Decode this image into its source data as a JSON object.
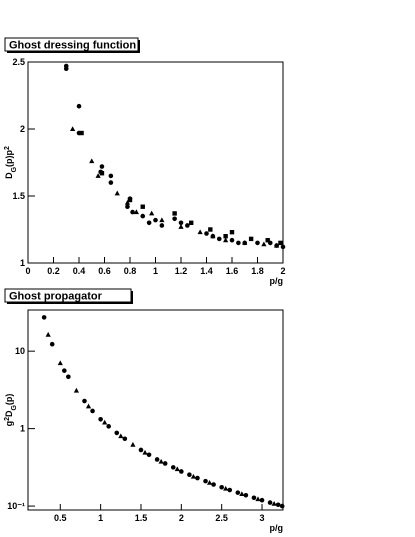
{
  "chart_data": [
    {
      "type": "scatter",
      "title": "Ghost dressing function",
      "xlabel": "p/g",
      "ylabel": [
        "D",
        "G",
        "(p)p",
        "2"
      ],
      "xlim": [
        0,
        2
      ],
      "ylim": [
        1,
        2.5
      ],
      "xticks": [
        0,
        0.2,
        0.4,
        0.6,
        0.8,
        1,
        1.2,
        1.4,
        1.6,
        1.8,
        2
      ],
      "yticks": [
        1,
        1.5,
        2,
        2.5
      ],
      "log_y": false,
      "series": [
        {
          "marker": "circle",
          "color": "#000000",
          "x": [
            0.3,
            0.3,
            0.4,
            0.4,
            0.57,
            0.58,
            0.65,
            0.65,
            0.78,
            0.8,
            0.82,
            0.9,
            0.95,
            1.0,
            1.05,
            1.15,
            1.2,
            1.25,
            1.4,
            1.45,
            1.5,
            1.6,
            1.65,
            1.7,
            1.8,
            1.9,
            1.95,
            2.0
          ],
          "values": [
            2.47,
            2.45,
            2.17,
            1.97,
            1.68,
            1.72,
            1.65,
            1.6,
            1.42,
            1.48,
            1.38,
            1.35,
            1.3,
            1.32,
            1.28,
            1.33,
            1.3,
            1.28,
            1.22,
            1.2,
            1.18,
            1.17,
            1.15,
            1.15,
            1.15,
            1.15,
            1.13,
            1.12
          ]
        },
        {
          "marker": "triangle",
          "color": "#000000",
          "x": [
            0.35,
            0.5,
            0.55,
            0.7,
            0.78,
            0.85,
            0.97,
            1.05,
            1.2,
            1.35,
            1.45,
            1.55,
            1.7,
            1.85,
            1.95
          ],
          "values": [
            2.0,
            1.76,
            1.65,
            1.52,
            1.45,
            1.38,
            1.37,
            1.32,
            1.27,
            1.23,
            1.2,
            1.17,
            1.15,
            1.14,
            1.13
          ]
        },
        {
          "marker": "square",
          "color": "#000000",
          "x": [
            0.42,
            0.58,
            0.8,
            0.9,
            1.15,
            1.28,
            1.43,
            1.55,
            1.6,
            1.75,
            1.88,
            1.98
          ],
          "values": [
            1.97,
            1.67,
            1.47,
            1.42,
            1.37,
            1.3,
            1.25,
            1.2,
            1.23,
            1.18,
            1.17,
            1.15
          ]
        }
      ]
    },
    {
      "type": "scatter",
      "title": "Ghost propagator",
      "xlabel": "p/g",
      "ylabel": [
        "g",
        "2",
        "D",
        "G",
        "(p)"
      ],
      "xlim": [
        0.1,
        3.26
      ],
      "ylim": [
        0.089,
        34
      ],
      "log_y": true,
      "xticks": [
        0.5,
        1,
        1.5,
        2,
        2.5,
        3
      ],
      "yticks": [
        {
          "value": 0.1,
          "label": "10⁻¹"
        },
        1,
        10
      ],
      "series": [
        {
          "marker": "circle",
          "color": "#000000",
          "x": [
            0.3,
            0.4,
            0.55,
            0.6,
            0.8,
            0.9,
            1.0,
            1.1,
            1.2,
            1.3,
            1.5,
            1.6,
            1.7,
            1.8,
            1.9,
            2.0,
            2.1,
            2.2,
            2.3,
            2.4,
            2.5,
            2.6,
            2.7,
            2.8,
            2.9,
            3.0,
            3.1,
            3.2,
            3.25
          ],
          "values": [
            27.3,
            12.3,
            5.6,
            4.67,
            2.27,
            1.69,
            1.32,
            1.07,
            0.88,
            0.74,
            0.53,
            0.46,
            0.4,
            0.355,
            0.316,
            0.28,
            0.254,
            0.23,
            0.21,
            0.19,
            0.175,
            0.161,
            0.149,
            0.138,
            0.128,
            0.119,
            0.111,
            0.104,
            0.1
          ]
        },
        {
          "marker": "triangle",
          "color": "#000000",
          "x": [
            0.35,
            0.5,
            0.7,
            0.85,
            1.05,
            1.25,
            1.4,
            1.55,
            1.75,
            1.95,
            2.15,
            2.35,
            2.55,
            2.75,
            2.95,
            3.15
          ],
          "values": [
            16.3,
            7.0,
            3.1,
            1.94,
            1.2,
            0.8,
            0.62,
            0.49,
            0.375,
            0.3,
            0.24,
            0.2,
            0.168,
            0.143,
            0.123,
            0.107
          ]
        }
      ]
    }
  ]
}
